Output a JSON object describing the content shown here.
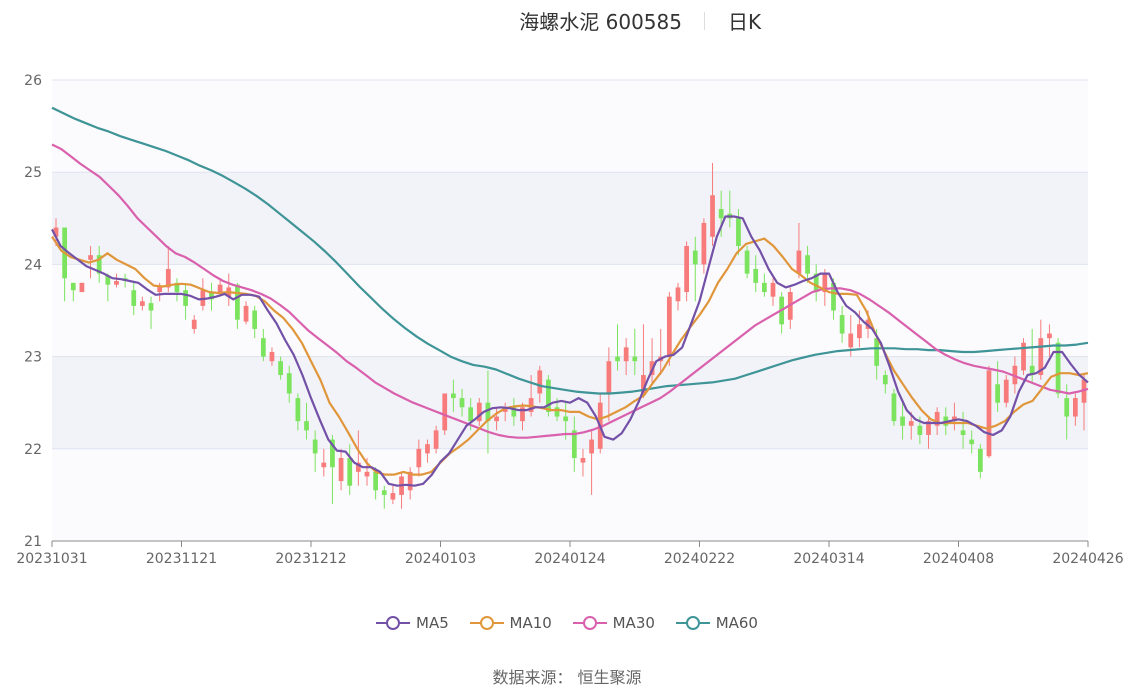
{
  "header": {
    "stock": "海螺水泥 600585",
    "period": "日K"
  },
  "footer": {
    "source": "数据来源：  恒生聚源"
  },
  "colors": {
    "up": "#f77b7b",
    "down": "#7be35d",
    "ma5": "#7351a7",
    "ma10": "#e0963a",
    "ma30": "#d960ac",
    "ma60": "#3e9496",
    "band": "#f2f3f8",
    "grid": "#dfe3ef"
  },
  "chart_data": {
    "type": "candlestick",
    "ylim": [
      21,
      26
    ],
    "yticks": [
      "21",
      "22",
      "23",
      "24",
      "25",
      "26"
    ],
    "xticks": [
      "20231031",
      "20231121",
      "20231212",
      "20240103",
      "20240124",
      "20240222",
      "20240314",
      "20240408",
      "20240426"
    ],
    "legend": [
      "MA5",
      "MA10",
      "MA30",
      "MA60"
    ],
    "series": [
      {
        "name": "MA5",
        "values": [
          24.38,
          24.2,
          24.12,
          24.05,
          23.98,
          23.94,
          23.9,
          23.85,
          23.84,
          23.82,
          23.8,
          23.73,
          23.67,
          23.68,
          23.68,
          23.68,
          23.66,
          23.62,
          23.63,
          23.65,
          23.68,
          23.62,
          23.67,
          23.67,
          23.65,
          23.5,
          23.36,
          23.18,
          23.02,
          22.8,
          22.55,
          22.32,
          22.1,
          21.98,
          21.97,
          21.85,
          21.8,
          21.8,
          21.75,
          21.62,
          21.6,
          21.61,
          21.6,
          21.62,
          21.72,
          21.86,
          21.95,
          22.1,
          22.25,
          22.32,
          22.4,
          22.44,
          22.45,
          22.44,
          22.42,
          22.42,
          22.45,
          22.45,
          22.5,
          22.52,
          22.5,
          22.55,
          22.5,
          22.35,
          22.13,
          22.1,
          22.17,
          22.32,
          22.52,
          22.75,
          22.95,
          23.0,
          23.02,
          23.1,
          23.35,
          23.6,
          23.95,
          24.3,
          24.52,
          24.52,
          24.5,
          24.3,
          24.15,
          23.95,
          23.8,
          23.75,
          23.78,
          23.82,
          23.85,
          23.9,
          23.9,
          23.7,
          23.55,
          23.48,
          23.38,
          23.3,
          23.15,
          22.9,
          22.62,
          22.42,
          22.32,
          22.28,
          22.28,
          22.28,
          22.3,
          22.32,
          22.3,
          22.25,
          22.18,
          22.15,
          22.2,
          22.35,
          22.62,
          22.8,
          22.82,
          22.88,
          23.05,
          23.05,
          22.92,
          22.8,
          22.72
        ]
      },
      {
        "name": "MA10",
        "values": [
          24.3,
          24.15,
          24.08,
          24.05,
          24.02,
          24.05,
          24.12,
          24.05,
          24.0,
          23.95,
          23.85,
          23.77,
          23.76,
          23.78,
          23.79,
          23.78,
          23.74,
          23.7,
          23.69,
          23.7,
          23.69,
          23.68,
          23.66,
          23.6,
          23.5,
          23.42,
          23.3,
          23.15,
          22.95,
          22.75,
          22.5,
          22.35,
          22.18,
          22.0,
          21.85,
          21.75,
          21.72,
          21.72,
          21.75,
          21.72,
          21.72,
          21.75,
          21.85,
          21.95,
          22.02,
          22.1,
          22.2,
          22.3,
          22.38,
          22.44,
          22.46,
          22.47,
          22.46,
          22.44,
          22.42,
          22.42,
          22.4,
          22.4,
          22.35,
          22.32,
          22.35,
          22.4,
          22.45,
          22.52,
          22.58,
          22.72,
          22.85,
          23.02,
          23.18,
          23.32,
          23.45,
          23.6,
          23.8,
          23.95,
          24.12,
          24.22,
          24.25,
          24.28,
          24.2,
          24.08,
          23.95,
          23.88,
          23.8,
          23.75,
          23.7,
          23.68,
          23.68,
          23.67,
          23.5,
          23.25,
          23.05,
          22.85,
          22.7,
          22.55,
          22.42,
          22.32,
          22.28,
          22.28,
          22.28,
          22.28,
          22.25,
          22.22,
          22.25,
          22.3,
          22.4,
          22.48,
          22.52,
          22.65,
          22.78,
          22.82,
          22.82,
          22.8,
          22.82
        ]
      },
      {
        "name": "MA30",
        "values": [
          25.3,
          25.25,
          25.17,
          25.09,
          25.02,
          24.95,
          24.85,
          24.75,
          24.63,
          24.5,
          24.4,
          24.3,
          24.2,
          24.12,
          24.08,
          24.02,
          23.95,
          23.88,
          23.82,
          23.78,
          23.75,
          23.72,
          23.68,
          23.63,
          23.56,
          23.48,
          23.38,
          23.28,
          23.2,
          23.12,
          23.04,
          22.95,
          22.88,
          22.8,
          22.72,
          22.66,
          22.6,
          22.55,
          22.5,
          22.46,
          22.42,
          22.38,
          22.34,
          22.3,
          22.26,
          22.22,
          22.18,
          22.15,
          22.13,
          22.12,
          22.12,
          22.13,
          22.14,
          22.15,
          22.16,
          22.16,
          22.18,
          22.21,
          22.25,
          22.3,
          22.35,
          22.4,
          22.45,
          22.5,
          22.55,
          22.62,
          22.7,
          22.78,
          22.86,
          22.94,
          23.02,
          23.1,
          23.18,
          23.26,
          23.34,
          23.4,
          23.46,
          23.52,
          23.58,
          23.64,
          23.7,
          23.73,
          23.74,
          23.74,
          23.72,
          23.68,
          23.62,
          23.55,
          23.48,
          23.4,
          23.32,
          23.24,
          23.16,
          23.08,
          23.02,
          22.97,
          22.93,
          22.9,
          22.88,
          22.86,
          22.84,
          22.8,
          22.76,
          22.72,
          22.68,
          22.64,
          22.62,
          22.6,
          22.62,
          22.65
        ]
      },
      {
        "name": "MA60",
        "values": [
          25.7,
          25.64,
          25.58,
          25.53,
          25.48,
          25.44,
          25.39,
          25.35,
          25.31,
          25.27,
          25.23,
          25.18,
          25.13,
          25.07,
          25.02,
          24.96,
          24.89,
          24.82,
          24.74,
          24.65,
          24.55,
          24.45,
          24.35,
          24.25,
          24.14,
          24.02,
          23.89,
          23.76,
          23.64,
          23.52,
          23.41,
          23.31,
          23.22,
          23.14,
          23.07,
          23.0,
          22.95,
          22.91,
          22.89,
          22.86,
          22.81,
          22.76,
          22.72,
          22.68,
          22.66,
          22.64,
          22.62,
          22.61,
          22.6,
          22.6,
          22.61,
          22.62,
          22.64,
          22.66,
          22.68,
          22.69,
          22.7,
          22.71,
          22.72,
          22.74,
          22.76,
          22.8,
          22.84,
          22.88,
          22.92,
          22.96,
          22.99,
          23.02,
          23.04,
          23.06,
          23.07,
          23.08,
          23.09,
          23.09,
          23.09,
          23.08,
          23.08,
          23.07,
          23.07,
          23.06,
          23.05,
          23.05,
          23.06,
          23.07,
          23.08,
          23.09,
          23.1,
          23.11,
          23.12,
          23.12,
          23.13,
          23.15
        ]
      }
    ],
    "candles": [
      [
        24.3,
        24.4,
        24.5,
        24.2
      ],
      [
        24.4,
        23.85,
        24.4,
        23.6
      ],
      [
        23.8,
        23.72,
        23.8,
        23.6
      ],
      [
        23.7,
        23.8,
        23.8,
        23.7
      ],
      [
        24.05,
        24.1,
        24.2,
        23.85
      ],
      [
        24.1,
        23.9,
        24.2,
        23.8
      ],
      [
        23.88,
        23.78,
        23.9,
        23.6
      ],
      [
        23.78,
        23.82,
        23.9,
        23.75
      ],
      [
        23.85,
        23.82,
        23.9,
        23.75
      ],
      [
        23.72,
        23.55,
        23.8,
        23.45
      ],
      [
        23.55,
        23.6,
        23.65,
        23.5
      ],
      [
        23.58,
        23.5,
        23.65,
        23.3
      ],
      [
        23.7,
        23.76,
        23.8,
        23.6
      ],
      [
        23.75,
        23.95,
        24.2,
        23.7
      ],
      [
        23.8,
        23.7,
        23.85,
        23.6
      ],
      [
        23.72,
        23.55,
        23.8,
        23.4
      ],
      [
        23.3,
        23.4,
        23.45,
        23.25
      ],
      [
        23.55,
        23.72,
        23.85,
        23.5
      ],
      [
        23.7,
        23.62,
        23.8,
        23.5
      ],
      [
        23.7,
        23.78,
        23.85,
        23.65
      ],
      [
        23.65,
        23.75,
        23.9,
        23.55
      ],
      [
        23.78,
        23.4,
        23.8,
        23.3
      ],
      [
        23.38,
        23.55,
        23.6,
        23.35
      ],
      [
        23.5,
        23.3,
        23.55,
        23.2
      ],
      [
        23.2,
        23.0,
        23.3,
        22.95
      ],
      [
        22.95,
        23.05,
        23.1,
        22.9
      ],
      [
        22.95,
        22.8,
        23.0,
        22.75
      ],
      [
        22.82,
        22.6,
        22.9,
        22.5
      ],
      [
        22.55,
        22.3,
        22.6,
        22.2
      ],
      [
        22.3,
        22.2,
        22.5,
        22.1
      ],
      [
        22.1,
        21.95,
        22.2,
        21.75
      ],
      [
        21.8,
        21.85,
        22.0,
        21.7
      ],
      [
        22.1,
        21.8,
        22.15,
        21.4
      ],
      [
        21.65,
        21.9,
        22.0,
        21.55
      ],
      [
        21.9,
        21.6,
        22.05,
        21.5
      ],
      [
        21.75,
        21.85,
        22.2,
        21.6
      ],
      [
        21.7,
        21.75,
        21.9,
        21.6
      ],
      [
        21.75,
        21.55,
        21.8,
        21.45
      ],
      [
        21.55,
        21.5,
        21.6,
        21.35
      ],
      [
        21.45,
        21.52,
        21.6,
        21.4
      ],
      [
        21.5,
        21.7,
        21.75,
        21.35
      ],
      [
        21.55,
        21.75,
        21.8,
        21.45
      ],
      [
        21.8,
        22.0,
        22.1,
        21.7
      ],
      [
        21.95,
        22.05,
        22.1,
        21.85
      ],
      [
        22.0,
        22.2,
        22.25,
        21.95
      ],
      [
        22.2,
        22.6,
        22.6,
        22.15
      ],
      [
        22.6,
        22.55,
        22.75,
        22.4
      ],
      [
        22.55,
        22.45,
        22.65,
        22.35
      ],
      [
        22.45,
        22.3,
        22.55,
        22.2
      ],
      [
        22.3,
        22.5,
        22.55,
        22.25
      ],
      [
        22.5,
        22.3,
        22.85,
        21.95
      ],
      [
        22.3,
        22.35,
        22.45,
        22.2
      ],
      [
        22.4,
        22.45,
        22.5,
        22.3
      ],
      [
        22.45,
        22.35,
        22.55,
        22.25
      ],
      [
        22.3,
        22.45,
        22.5,
        22.2
      ],
      [
        22.4,
        22.55,
        22.8,
        22.35
      ],
      [
        22.6,
        22.85,
        22.9,
        22.5
      ],
      [
        22.75,
        22.4,
        22.8,
        22.35
      ],
      [
        22.45,
        22.35,
        22.55,
        22.3
      ],
      [
        22.35,
        22.3,
        22.5,
        22.1
      ],
      [
        22.2,
        21.9,
        22.35,
        21.75
      ],
      [
        21.85,
        21.9,
        22.0,
        21.7
      ],
      [
        21.95,
        22.1,
        22.2,
        21.5
      ],
      [
        22.0,
        22.5,
        22.6,
        21.95
      ],
      [
        22.6,
        22.95,
        23.1,
        22.3
      ],
      [
        23.0,
        22.95,
        23.35,
        22.85
      ],
      [
        22.95,
        23.1,
        23.2,
        22.8
      ],
      [
        23.0,
        22.95,
        23.3,
        22.8
      ],
      [
        22.6,
        22.8,
        23.35,
        22.55
      ],
      [
        22.8,
        22.95,
        23.2,
        22.7
      ],
      [
        22.95,
        23.0,
        23.3,
        22.8
      ],
      [
        23.0,
        23.65,
        23.7,
        22.9
      ],
      [
        23.6,
        23.75,
        23.8,
        23.5
      ],
      [
        23.7,
        24.2,
        24.25,
        23.6
      ],
      [
        24.15,
        24.0,
        24.3,
        23.6
      ],
      [
        24.0,
        24.45,
        24.5,
        23.9
      ],
      [
        24.3,
        24.75,
        25.1,
        24.2
      ],
      [
        24.6,
        24.5,
        24.8,
        24.3
      ],
      [
        24.55,
        24.5,
        24.8,
        24.4
      ],
      [
        24.5,
        24.2,
        24.6,
        24.1
      ],
      [
        24.15,
        23.9,
        24.2,
        23.85
      ],
      [
        23.95,
        23.8,
        24.1,
        23.7
      ],
      [
        23.8,
        23.7,
        23.9,
        23.65
      ],
      [
        23.65,
        23.8,
        23.85,
        23.55
      ],
      [
        23.65,
        23.35,
        23.7,
        23.25
      ],
      [
        23.4,
        23.7,
        23.75,
        23.3
      ],
      [
        23.9,
        24.15,
        24.45,
        23.85
      ],
      [
        24.1,
        23.9,
        24.2,
        23.8
      ],
      [
        23.9,
        23.7,
        24.0,
        23.6
      ],
      [
        23.7,
        23.9,
        23.95,
        23.55
      ],
      [
        23.8,
        23.5,
        23.85,
        23.4
      ],
      [
        23.45,
        23.25,
        23.55,
        23.15
      ],
      [
        23.1,
        23.25,
        23.45,
        23.0
      ],
      [
        23.2,
        23.35,
        23.5,
        23.1
      ],
      [
        23.3,
        23.4,
        23.5,
        23.2
      ],
      [
        23.2,
        22.9,
        23.3,
        22.75
      ],
      [
        22.8,
        22.7,
        22.85,
        22.6
      ],
      [
        22.6,
        22.3,
        22.65,
        22.25
      ],
      [
        22.35,
        22.25,
        22.5,
        22.1
      ],
      [
        22.25,
        22.3,
        22.4,
        22.1
      ],
      [
        22.25,
        22.15,
        22.35,
        22.05
      ],
      [
        22.15,
        22.3,
        22.35,
        22.0
      ],
      [
        22.25,
        22.4,
        22.45,
        22.15
      ],
      [
        22.35,
        22.25,
        22.45,
        22.15
      ],
      [
        22.3,
        22.35,
        22.5,
        22.2
      ],
      [
        22.2,
        22.15,
        22.4,
        22.0
      ],
      [
        22.1,
        22.05,
        22.2,
        21.95
      ],
      [
        22.0,
        21.75,
        22.05,
        21.68
      ],
      [
        21.92,
        22.85,
        22.9,
        21.9
      ],
      [
        22.7,
        22.5,
        22.95,
        22.4
      ],
      [
        22.5,
        22.75,
        22.8,
        22.45
      ],
      [
        22.7,
        22.9,
        23.0,
        22.6
      ],
      [
        22.85,
        23.15,
        23.2,
        22.8
      ],
      [
        22.9,
        22.8,
        23.3,
        22.7
      ],
      [
        22.8,
        23.2,
        23.4,
        22.75
      ],
      [
        23.2,
        23.25,
        23.35,
        23.0
      ],
      [
        23.15,
        22.6,
        23.2,
        22.55
      ],
      [
        22.55,
        22.35,
        22.7,
        22.1
      ],
      [
        22.35,
        22.55,
        22.6,
        22.25
      ],
      [
        22.5,
        22.75,
        22.8,
        22.2
      ]
    ]
  }
}
